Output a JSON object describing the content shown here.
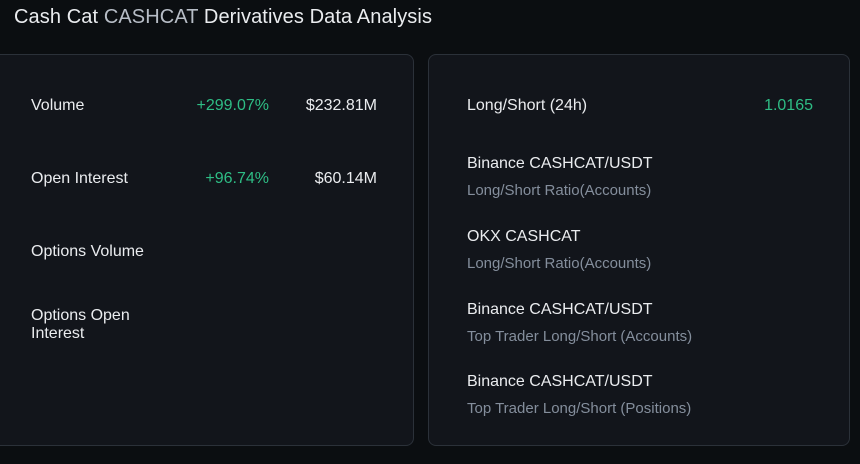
{
  "page": {
    "title_prefix": "Cash Cat ",
    "title_symbol": "CASHCAT",
    "title_suffix": " Derivatives Data Analysis"
  },
  "metrics": [
    {
      "label": "Volume",
      "change": "+299.07%",
      "value": "$232.81M"
    },
    {
      "label": "Open Interest",
      "change": "+96.74%",
      "value": "$60.14M"
    },
    {
      "label": "Options Volume",
      "change": "",
      "value": ""
    },
    {
      "label": "Options Open Interest",
      "change": "",
      "value": ""
    }
  ],
  "long_short": {
    "label": "Long/Short (24h)",
    "value": "1.0165"
  },
  "sources": [
    {
      "name": "Binance CASHCAT/USDT",
      "desc": "Long/Short Ratio(Accounts)"
    },
    {
      "name": "OKX CASHCAT",
      "desc": "Long/Short Ratio(Accounts)"
    },
    {
      "name": "Binance CASHCAT/USDT",
      "desc": "Top Trader Long/Short (Accounts)"
    },
    {
      "name": "Binance CASHCAT/USDT",
      "desc": "Top Trader Long/Short (Positions)"
    }
  ],
  "colors": {
    "background": "#0b0e11",
    "panel": "#12151b",
    "positive": "#2ebd85",
    "text": "#eaecef",
    "muted": "#848e9c"
  }
}
